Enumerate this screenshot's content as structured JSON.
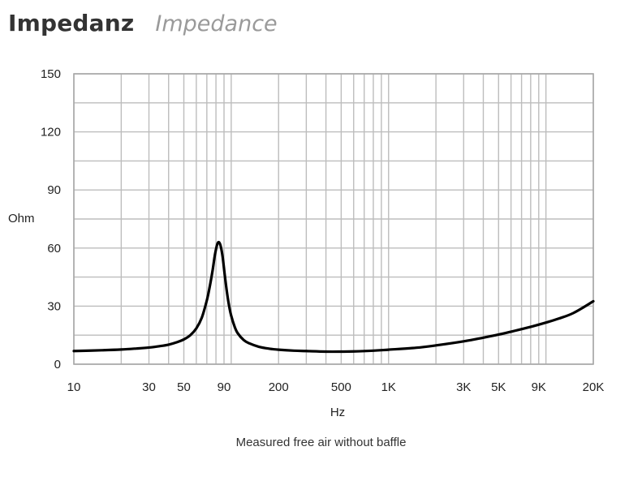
{
  "header": {
    "title_main": "Impedanz",
    "title_sub": "Impedance"
  },
  "caption": "Measured free air without baffle",
  "chart_data": {
    "type": "line",
    "title": "Impedanz",
    "subtitle": "Impedance",
    "xlabel": "Hz",
    "ylabel": "Ohm",
    "xscale": "log",
    "xlim": [
      10,
      20000
    ],
    "ylim": [
      0,
      150
    ],
    "grid": true,
    "x_ticks": [
      10,
      30,
      50,
      90,
      200,
      500,
      1000,
      3000,
      5000,
      9000,
      20000
    ],
    "x_tick_labels": [
      "10",
      "30",
      "50",
      "90",
      "200",
      "500",
      "1K",
      "3K",
      "5K",
      "9K",
      "20K"
    ],
    "y_ticks": [
      0,
      30,
      60,
      90,
      120,
      150
    ],
    "y_tick_labels": [
      "0",
      "30",
      "60",
      "90",
      "120",
      "150"
    ],
    "x_gridlines": [
      10,
      20,
      30,
      40,
      50,
      60,
      70,
      80,
      90,
      100,
      200,
      300,
      400,
      500,
      600,
      700,
      800,
      900,
      1000,
      2000,
      3000,
      4000,
      5000,
      6000,
      7000,
      8000,
      9000,
      10000,
      20000
    ],
    "y_gridlines": [
      0,
      15,
      30,
      45,
      60,
      75,
      90,
      105,
      120,
      135,
      150
    ],
    "series": [
      {
        "color": "#000000",
        "x": [
          10,
          15,
          20,
          25,
          30,
          35,
          40,
          45,
          50,
          55,
          60,
          65,
          70,
          73,
          76,
          79,
          82,
          85,
          88,
          91,
          94,
          97,
          100,
          105,
          110,
          120,
          130,
          150,
          175,
          200,
          250,
          300,
          400,
          500,
          600,
          800,
          1000,
          1500,
          2000,
          3000,
          4000,
          5000,
          6000,
          8000,
          10000,
          12000,
          15000,
          20000
        ],
        "y": [
          6.8,
          7.2,
          7.6,
          8.1,
          8.6,
          9.3,
          10.1,
          11.3,
          12.8,
          15.0,
          18.5,
          24.0,
          33.0,
          40.0,
          48.0,
          57.0,
          62.5,
          62.0,
          56.0,
          46.0,
          37.0,
          30.0,
          25.0,
          19.5,
          16.0,
          12.5,
          10.8,
          9.0,
          8.0,
          7.5,
          7.0,
          6.8,
          6.5,
          6.5,
          6.6,
          7.0,
          7.5,
          8.5,
          9.7,
          11.8,
          13.7,
          15.3,
          16.8,
          19.3,
          21.5,
          23.5,
          26.5,
          32.5
        ]
      }
    ]
  }
}
